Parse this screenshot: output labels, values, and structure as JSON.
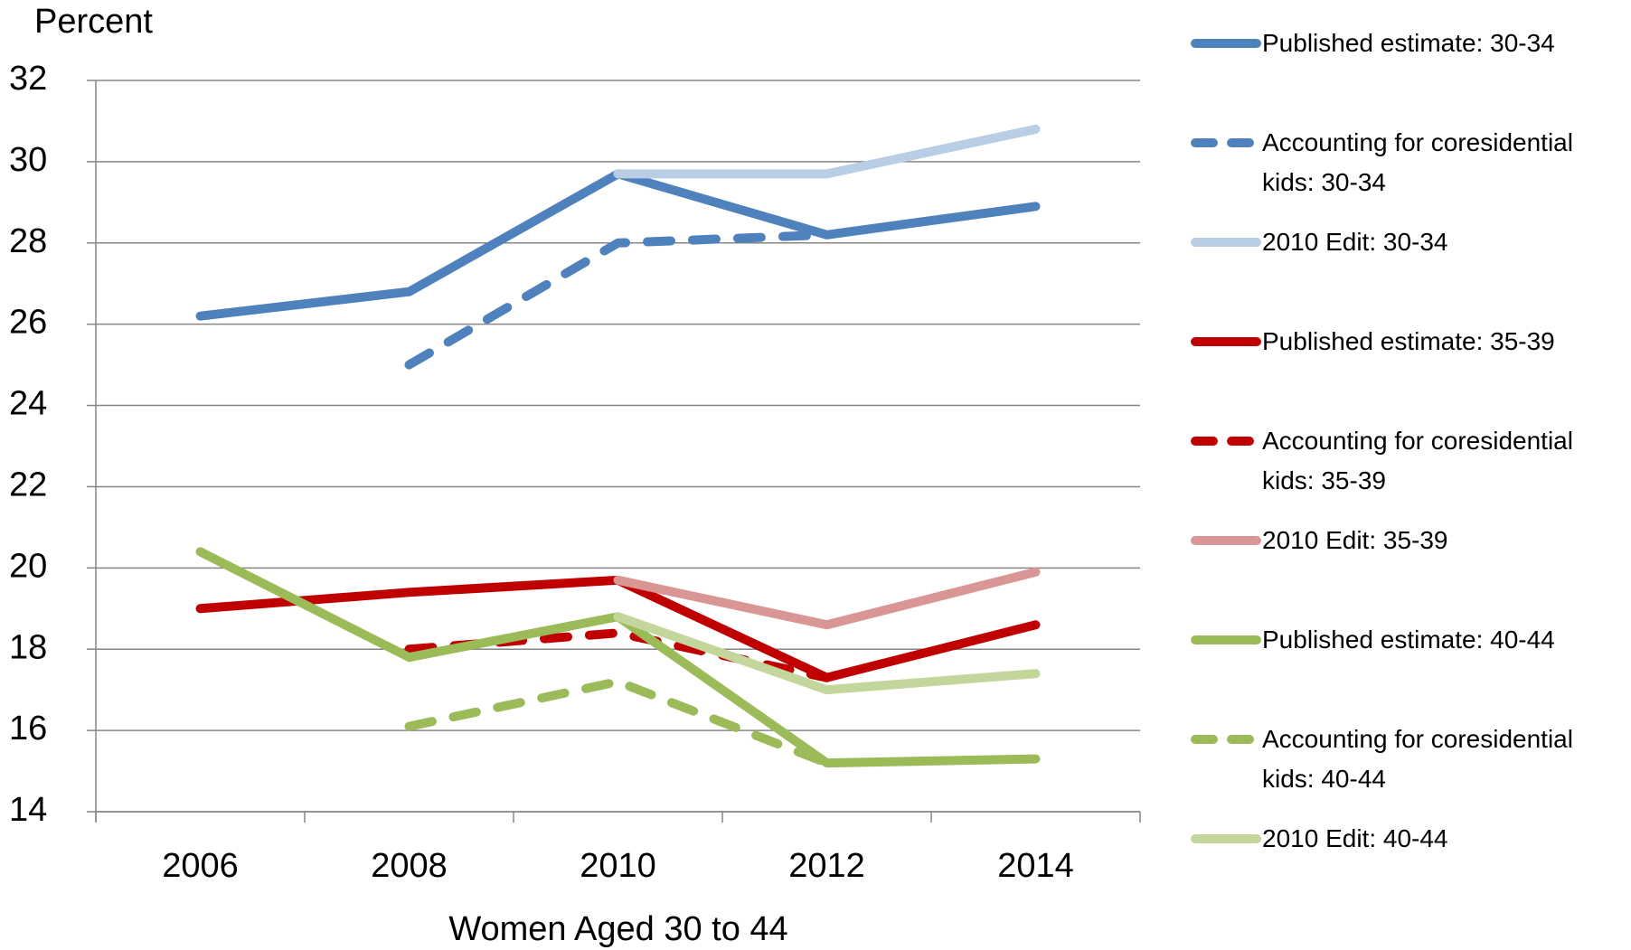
{
  "chart_data": {
    "type": "line",
    "y_axis_title": "Percent",
    "x_axis_title": "Women Aged 30 to 44",
    "categories": [
      "2006",
      "2008",
      "2010",
      "2012",
      "2014"
    ],
    "ylim": [
      14,
      32
    ],
    "yticks": [
      14,
      16,
      18,
      20,
      22,
      24,
      26,
      28,
      30,
      32
    ],
    "grid": true,
    "series": [
      {
        "name": "Published estimate: 30-34",
        "color": "#4f81bd",
        "dashed": false,
        "values": [
          26.2,
          26.8,
          29.7,
          28.2,
          28.9
        ]
      },
      {
        "name": "Accounting for coresidential kids: 30-34",
        "color": "#4f81bd",
        "dashed": true,
        "values": [
          null,
          25.0,
          28.0,
          28.2,
          null
        ]
      },
      {
        "name": "2010 Edit: 30-34",
        "color": "#b9cde5",
        "dashed": false,
        "values": [
          null,
          null,
          29.7,
          29.7,
          30.8
        ]
      },
      {
        "name": "Published estimate: 35-39",
        "color": "#c00000",
        "dashed": false,
        "values": [
          19.0,
          19.4,
          19.7,
          17.3,
          18.6
        ]
      },
      {
        "name": "Accounting for coresidential kids: 35-39",
        "color": "#c00000",
        "dashed": true,
        "values": [
          null,
          18.0,
          18.4,
          17.3,
          null
        ]
      },
      {
        "name": "2010 Edit: 35-39",
        "color": "#d99694",
        "dashed": false,
        "values": [
          null,
          null,
          19.7,
          18.6,
          19.9
        ]
      },
      {
        "name": "Published estimate: 40-44",
        "color": "#9bbb59",
        "dashed": false,
        "values": [
          20.4,
          17.8,
          18.8,
          15.2,
          15.3
        ]
      },
      {
        "name": "Accounting for coresidential kids: 40-44",
        "color": "#9bbb59",
        "dashed": true,
        "values": [
          null,
          16.1,
          17.2,
          15.2,
          null
        ]
      },
      {
        "name": "2010 Edit: 40-44",
        "color": "#c3d69b",
        "dashed": false,
        "values": [
          null,
          null,
          18.8,
          17.0,
          17.4
        ]
      }
    ]
  }
}
